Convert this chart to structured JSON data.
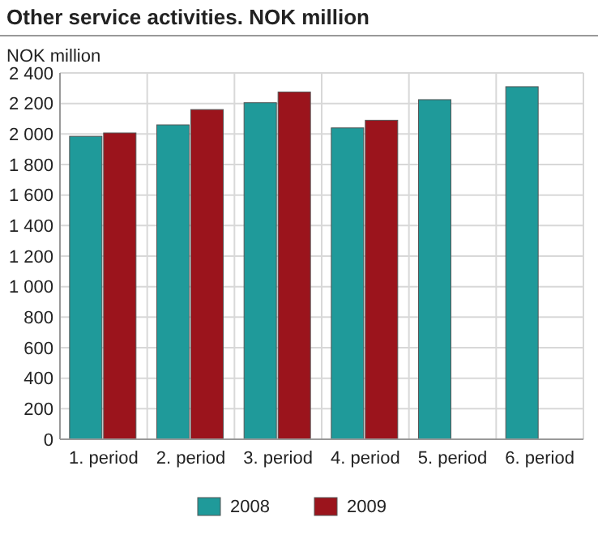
{
  "chart_data": {
    "type": "bar",
    "title": "Other service activities. NOK million",
    "ylabel": "NOK million",
    "categories": [
      "1. period",
      "2. period",
      "3. period",
      "4. period",
      "5. period",
      "6. period"
    ],
    "series": [
      {
        "name": "2008",
        "color": "#1f9a9a",
        "values": [
          1985,
          2060,
          2205,
          2040,
          2225,
          2310
        ]
      },
      {
        "name": "2009",
        "color": "#9b141c",
        "values": [
          2007,
          2160,
          2275,
          2090,
          null,
          null
        ]
      }
    ],
    "ylim": [
      0,
      2400
    ],
    "yticks": [
      {
        "value": 0,
        "label": "0"
      },
      {
        "value": 200,
        "label": "200"
      },
      {
        "value": 400,
        "label": "400"
      },
      {
        "value": 600,
        "label": "600"
      },
      {
        "value": 800,
        "label": "800"
      },
      {
        "value": 1000,
        "label": "1 000"
      },
      {
        "value": 1200,
        "label": "1 200"
      },
      {
        "value": 1400,
        "label": "1 400"
      },
      {
        "value": 1600,
        "label": "1 600"
      },
      {
        "value": 1800,
        "label": "1 800"
      },
      {
        "value": 2000,
        "label": "2 000"
      },
      {
        "value": 2200,
        "label": "2 200"
      },
      {
        "value": 2400,
        "label": "2 400"
      }
    ],
    "grid": true,
    "legend": "bottom"
  }
}
